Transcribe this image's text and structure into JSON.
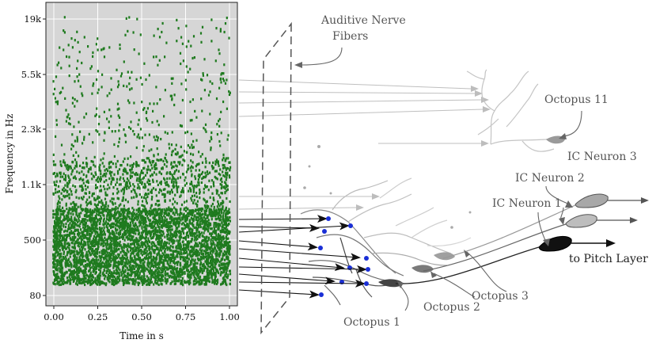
{
  "chart_data": {
    "type": "scatter",
    "description_kind": "spike raster",
    "xlabel": "Time in s",
    "ylabel": "Frequency in Hz",
    "x_ticks": [
      "0.00",
      "0.25",
      "0.50",
      "0.75",
      "1.00"
    ],
    "y_ticks": [
      "80",
      "500",
      "1.1k",
      "2.3k",
      "5.5k",
      "19k"
    ],
    "xlim": [
      0,
      1
    ],
    "y_scale": "logarithmic (ERB-like)",
    "grid": true,
    "marker_color": "#1e7a1e",
    "background_color": "#d6d6d6",
    "dense_band_hz": [
      80,
      1100
    ],
    "sparse_band_hz": [
      1100,
      19000
    ]
  },
  "annotations": {
    "auditive_nerve": "Auditive Nerve\nFibers",
    "octopus_11": "Octopus 11",
    "ic_neuron_3": "IC Neuron 3",
    "ic_neuron_2": "IC Neuron 2",
    "ic_neuron_1": "IC Neuron 1",
    "to_pitch_layer": "to Pitch Layer",
    "octopus_3": "Octopus 3",
    "octopus_2": "Octopus 2",
    "octopus_1": "Octopus 1"
  },
  "colors": {
    "spike_green": "#1e7a1e",
    "synapse_blue": "#1a2fd6",
    "arrow_dark": "#111111",
    "arrow_light": "#bbbbbb"
  }
}
